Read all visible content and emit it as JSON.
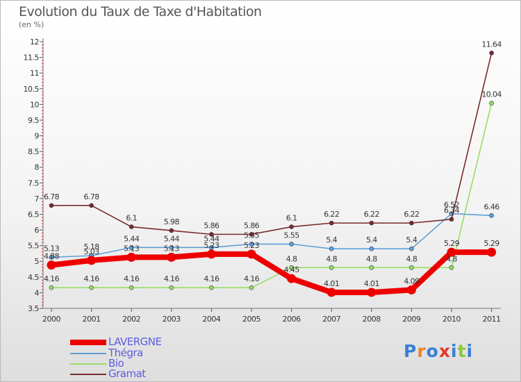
{
  "title": "Evolution du Taux de Taxe d'Habitation",
  "unit": "(en %)",
  "logo": {
    "letters": [
      "P",
      "r",
      "o",
      "x",
      "i",
      "t",
      "i"
    ],
    "colors": [
      "#3a7fd5",
      "#e9862a",
      "#3a7fd5",
      "#e23a2a",
      "#3a7fd5",
      "#8cc63e",
      "#3a7fd5"
    ]
  },
  "chart_data": {
    "type": "line",
    "title": "Evolution du Taux de Taxe d'Habitation",
    "ylabel": "(en %)",
    "xlabel": "",
    "x": [
      "2000",
      "2001",
      "2002",
      "2003",
      "2004",
      "2005",
      "2006",
      "2007",
      "2008",
      "2009",
      "2010",
      "2011"
    ],
    "ylim": [
      3.5,
      12
    ],
    "yticks": [
      "3.5",
      "4",
      "4.5",
      "5",
      "5.5",
      "6",
      "6.5",
      "7",
      "7.5",
      "8",
      "8.5",
      "9",
      "9.5",
      "10",
      "10.5",
      "11",
      "11.5",
      "12"
    ],
    "grid": false,
    "legend_position": "bottom-left",
    "series": [
      {
        "name": "LAVERGNE",
        "color": "#ee0000",
        "values": [
          4.88,
          5.03,
          5.13,
          5.13,
          5.23,
          5.23,
          4.45,
          4.01,
          4.01,
          4.09,
          5.29,
          5.29
        ],
        "labels": [
          "4.88",
          "5.03",
          "5.13",
          "5.13",
          "5.23",
          "5.23",
          "4.45",
          "4.01",
          "4.01",
          "4.09",
          "5.29",
          "5.29"
        ]
      },
      {
        "name": "Thégra",
        "color": "#5e9fd8",
        "values": [
          5.13,
          5.18,
          5.44,
          5.44,
          5.44,
          5.55,
          5.55,
          5.4,
          5.4,
          5.4,
          6.52,
          6.46
        ],
        "labels": [
          "5.13",
          "5.18",
          "5.44",
          "5.44",
          "5.44",
          "5.55",
          "5.55",
          "5.4",
          "5.4",
          "5.4",
          "6.52",
          "6.46"
        ]
      },
      {
        "name": "Bio",
        "color": "#99dd66",
        "values": [
          4.16,
          4.16,
          4.16,
          4.16,
          4.16,
          4.16,
          4.8,
          4.8,
          4.8,
          4.8,
          4.8,
          10.04
        ],
        "labels": [
          "4.16",
          "4.16",
          "4.16",
          "4.16",
          "4.16",
          "4.16",
          "4.8",
          "4.8",
          "4.8",
          "4.8",
          "4.8",
          "10.04"
        ]
      },
      {
        "name": "Gramat",
        "color": "#7a2a2a",
        "values": [
          6.78,
          6.78,
          6.1,
          5.98,
          5.86,
          5.86,
          6.1,
          6.22,
          6.22,
          6.22,
          6.34,
          11.64
        ],
        "labels": [
          "6.78",
          "6.78",
          "6.1",
          "5.98",
          "5.86",
          "5.86",
          "6.1",
          "6.22",
          "6.22",
          "6.22",
          "6.34",
          "11.64"
        ]
      }
    ]
  }
}
